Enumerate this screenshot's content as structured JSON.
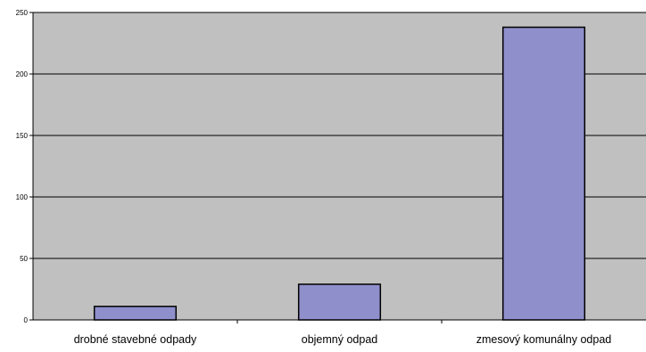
{
  "chart_data": {
    "type": "bar",
    "title": "",
    "categories": [
      "drobné stavebné odpady",
      "objemný odpad",
      "zmesový komunálny odpad"
    ],
    "values": [
      11,
      29,
      238
    ],
    "ylim": [
      0,
      250
    ],
    "yticks": [
      0,
      50,
      100,
      150,
      200,
      250
    ],
    "xlabel": "",
    "ylabel": "",
    "grid": true,
    "legend": false
  },
  "colors": {
    "plot_background": "#c0c0c0",
    "bar_fill": "#8f8fcb",
    "bar_stroke": "#000000",
    "gridline": "#000000"
  }
}
